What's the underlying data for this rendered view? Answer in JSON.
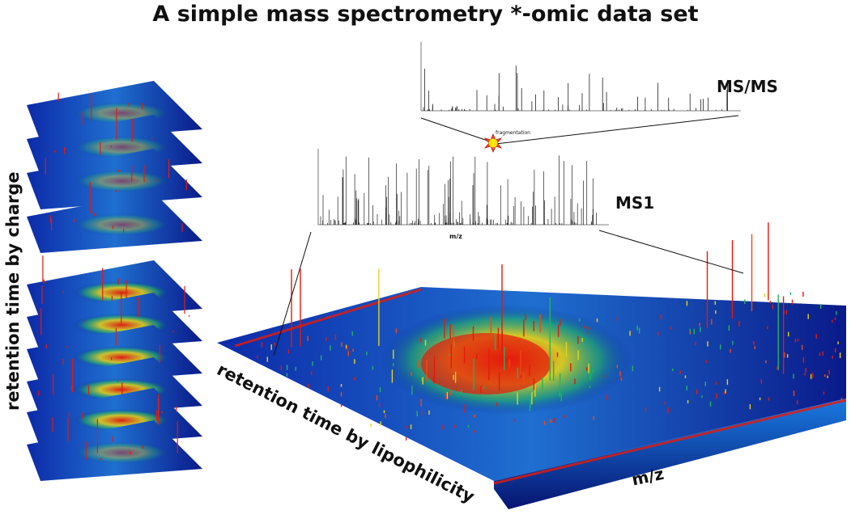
{
  "title": "A simple mass spectrometry *-omic data set",
  "labels": {
    "msms": "MS/MS",
    "ms1": "MS1",
    "fragmentation": "fragmentation",
    "ms1_xlabel": "m/z",
    "main_x": "m/z",
    "main_y": "retention time by lipophilicity",
    "stack_axis": "retention time by charge"
  },
  "colors": {
    "surface_low": "#0a1e96",
    "surface_mid": "#2fbf6a",
    "surface_high": "#e41a0c",
    "peak_top": "#ffe400"
  },
  "icons": [
    "fragmentation-burst-icon"
  ]
}
